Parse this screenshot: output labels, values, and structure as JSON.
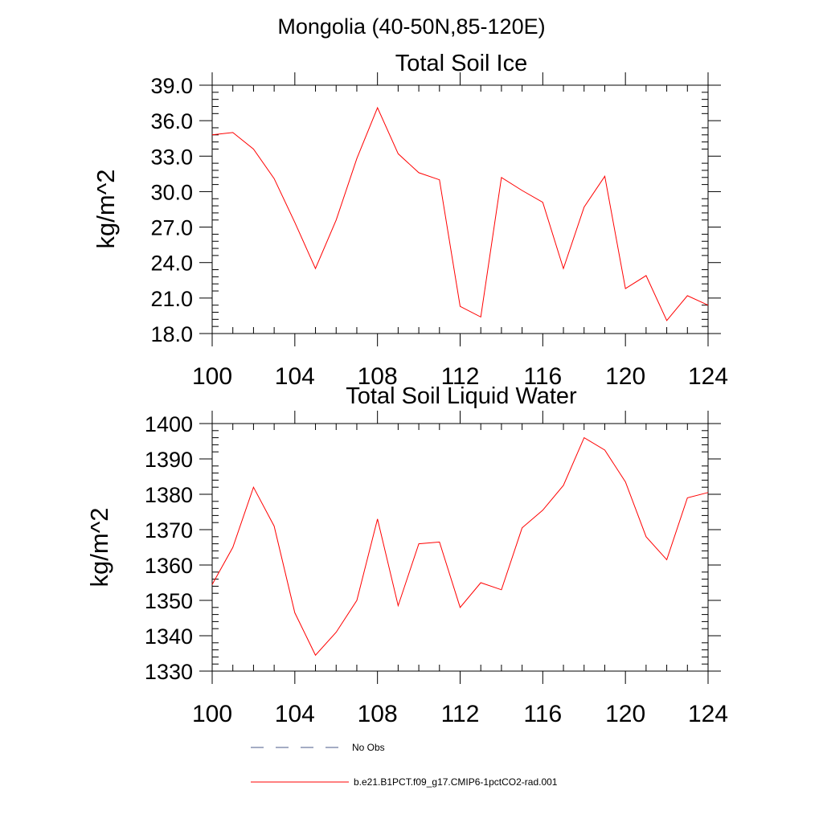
{
  "figure": {
    "suptitle": "Mongolia (40-50N,85-120E)"
  },
  "chart_data": [
    {
      "type": "line",
      "title": "Total Soil Ice",
      "xlabel": "",
      "ylabel": "kg/m^2",
      "xlim": [
        100,
        124
      ],
      "ylim": [
        18.0,
        39.0
      ],
      "xticks": [
        100,
        104,
        108,
        112,
        116,
        120,
        124
      ],
      "yticks": [
        18.0,
        21.0,
        24.0,
        27.0,
        30.0,
        33.0,
        36.0,
        39.0
      ],
      "ytick_labels": [
        "18.0",
        "21.0",
        "24.0",
        "27.0",
        "30.0",
        "33.0",
        "36.0",
        "39.0"
      ],
      "grid": false,
      "x": [
        100,
        101,
        102,
        103,
        104,
        105,
        106,
        107,
        108,
        109,
        110,
        111,
        112,
        113,
        114,
        115,
        116,
        117,
        118,
        119,
        120,
        121,
        122,
        123,
        124
      ],
      "series": [
        {
          "name": "b.e21.B1PCT.f09_g17.CMIP6-1pctCO2-rad.001",
          "color": "#ff0000",
          "values": [
            34.8,
            35.0,
            33.6,
            31.1,
            27.4,
            23.5,
            27.6,
            32.8,
            37.1,
            33.2,
            31.6,
            31.0,
            20.3,
            19.4,
            31.2,
            30.1,
            29.1,
            23.5,
            28.7,
            31.3,
            21.8,
            22.9,
            19.1,
            21.2,
            20.4
          ]
        }
      ]
    },
    {
      "type": "line",
      "title": "Total Soil Liquid Water",
      "xlabel": "",
      "ylabel": "kg/m^2",
      "xlim": [
        100,
        124
      ],
      "ylim": [
        1330,
        1400
      ],
      "xticks": [
        100,
        104,
        108,
        112,
        116,
        120,
        124
      ],
      "yticks": [
        1330,
        1340,
        1350,
        1360,
        1370,
        1380,
        1390,
        1400
      ],
      "ytick_labels": [
        "1330",
        "1340",
        "1350",
        "1360",
        "1370",
        "1380",
        "1390",
        "1400"
      ],
      "grid": false,
      "x": [
        100,
        101,
        102,
        103,
        104,
        105,
        106,
        107,
        108,
        109,
        110,
        111,
        112,
        113,
        114,
        115,
        116,
        117,
        118,
        119,
        120,
        121,
        122,
        123,
        124
      ],
      "series": [
        {
          "name": "b.e21.B1PCT.f09_g17.CMIP6-1pctCO2-rad.001",
          "color": "#ff0000",
          "values": [
            1354.5,
            1365.0,
            1382.0,
            1371.0,
            1346.5,
            1334.5,
            1341.0,
            1350.0,
            1373.0,
            1348.5,
            1366.0,
            1366.5,
            1348.0,
            1355.0,
            1353.0,
            1370.5,
            1375.5,
            1382.5,
            1396.0,
            1392.5,
            1383.5,
            1368.0,
            1361.5,
            1379.0,
            1380.5
          ]
        }
      ]
    }
  ],
  "legend": {
    "placement": "bottom",
    "entries": [
      {
        "label": "No Obs",
        "color": "#4a5a8a",
        "style": "dashed"
      },
      {
        "label": "b.e21.B1PCT.f09_g17.CMIP6-1pctCO2-rad.001",
        "color": "#ff0000",
        "style": "solid"
      }
    ]
  }
}
